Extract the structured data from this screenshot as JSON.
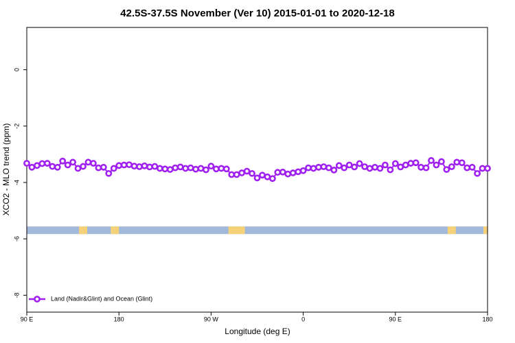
{
  "chart_data": {
    "type": "line",
    "title": "42.5S-37.5S November (Ver 10)   2015-01-01 to 2020-12-18",
    "x_label": "Longitude (deg E)",
    "y_label": "XCO2 - MLO trend (ppm)",
    "x": [
      90,
      95,
      100,
      105,
      110,
      115,
      120,
      125,
      130,
      135,
      140,
      145,
      150,
      155,
      160,
      165,
      170,
      175,
      180,
      185,
      190,
      195,
      200,
      205,
      210,
      215,
      220,
      225,
      230,
      235,
      240,
      245,
      250,
      255,
      260,
      265,
      270,
      275,
      280,
      285,
      290,
      295,
      300,
      305,
      310,
      315,
      320,
      325,
      330,
      335,
      340,
      345,
      350,
      355,
      360,
      365,
      370,
      375,
      380,
      385,
      390,
      395,
      400,
      405,
      410,
      415,
      420,
      425,
      430,
      435,
      440,
      445,
      450,
      455,
      460,
      465,
      470,
      475,
      480,
      485,
      490,
      495,
      500,
      505,
      510,
      515,
      520,
      525,
      530,
      535,
      540
    ],
    "series": [
      {
        "name": "Land (Nadir&Glint) and Ocean (Glint)",
        "color": "#a020f0",
        "values": [
          -3.32,
          -3.46,
          -3.4,
          -3.33,
          -3.32,
          -3.43,
          -3.46,
          -3.24,
          -3.38,
          -3.28,
          -3.5,
          -3.43,
          -3.28,
          -3.32,
          -3.48,
          -3.46,
          -3.68,
          -3.5,
          -3.4,
          -3.38,
          -3.37,
          -3.42,
          -3.44,
          -3.41,
          -3.45,
          -3.43,
          -3.5,
          -3.52,
          -3.54,
          -3.48,
          -3.45,
          -3.5,
          -3.48,
          -3.53,
          -3.5,
          -3.55,
          -3.42,
          -3.52,
          -3.5,
          -3.52,
          -3.72,
          -3.72,
          -3.66,
          -3.6,
          -3.68,
          -3.84,
          -3.74,
          -3.8,
          -3.86,
          -3.64,
          -3.63,
          -3.7,
          -3.66,
          -3.62,
          -3.58,
          -3.48,
          -3.5,
          -3.46,
          -3.44,
          -3.48,
          -3.56,
          -3.4,
          -3.48,
          -3.38,
          -3.45,
          -3.33,
          -3.44,
          -3.5,
          -3.46,
          -3.5,
          -3.38,
          -3.55,
          -3.33,
          -3.45,
          -3.38,
          -3.32,
          -3.3,
          -3.46,
          -3.48,
          -3.22,
          -3.38,
          -3.26,
          -3.54,
          -3.44,
          -3.28,
          -3.3,
          -3.48,
          -3.46,
          -3.68,
          -3.5,
          -3.5
        ]
      }
    ],
    "band": {
      "ymin": -5.83,
      "ymax": -5.56,
      "ocean_color": "#a3b9d9",
      "land_color": "#f5d27a",
      "land_segments": [
        [
          141,
          149
        ],
        [
          172,
          180
        ],
        [
          287,
          303
        ],
        [
          501,
          509
        ],
        [
          536,
          540
        ]
      ]
    },
    "xlim": [
      90,
      540
    ],
    "ylim": [
      -8.6,
      1.5
    ],
    "xticks": [
      {
        "value": 90,
        "label": "90 E"
      },
      180,
      {
        "value": 270,
        "label": "90 W"
      },
      {
        "value": 360,
        "label": "0"
      },
      {
        "value": 450,
        "label": "90 E"
      },
      {
        "value": 540,
        "label": "180"
      }
    ],
    "yticks": [
      -8,
      -6,
      -4,
      -2,
      0
    ],
    "legend": "bottom-left"
  }
}
